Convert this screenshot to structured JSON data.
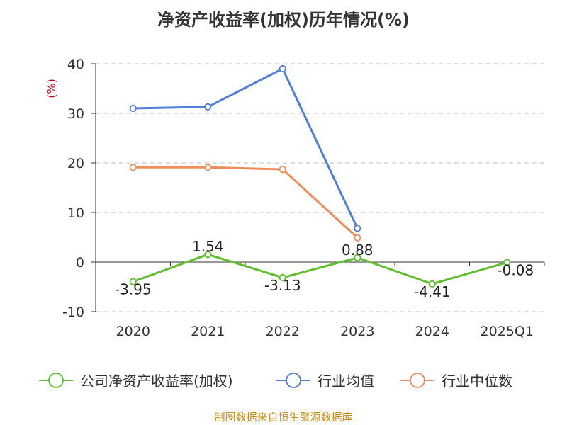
{
  "title": "净资产收益率(加权)历年情况(%)",
  "source": "制图数据来自恒生聚源数据库",
  "colors": {
    "company": "#5fbf2f",
    "industry_avg": "#4f7fd9",
    "industry_median": "#f08c5a",
    "unit_label": "#d0021b",
    "grid": "#cccccc",
    "axis": "#333333"
  },
  "chart_data": {
    "type": "line",
    "categories": [
      "2020",
      "2021",
      "2022",
      "2023",
      "2024",
      "2025Q1"
    ],
    "ylabel": "(%)",
    "ylim": [
      -10,
      40
    ],
    "yticks": [
      -10,
      0,
      10,
      20,
      30,
      40
    ],
    "grid": true,
    "legend_position": "bottom",
    "series": [
      {
        "key": "company",
        "name": "公司净资产收益率(加权)",
        "values": [
          -3.95,
          1.54,
          -3.13,
          0.88,
          -4.41,
          -0.08
        ],
        "labels": [
          "-3.95",
          "1.54",
          "-3.13",
          "0.88",
          "-4.41",
          "-0.08"
        ]
      },
      {
        "key": "industry_avg",
        "name": "行业均值",
        "values": [
          31.0,
          31.3,
          39.0,
          6.8,
          null,
          null
        ]
      },
      {
        "key": "industry_median",
        "name": "行业中位数",
        "values": [
          19.1,
          19.1,
          18.7,
          4.9,
          null,
          null
        ]
      }
    ]
  }
}
